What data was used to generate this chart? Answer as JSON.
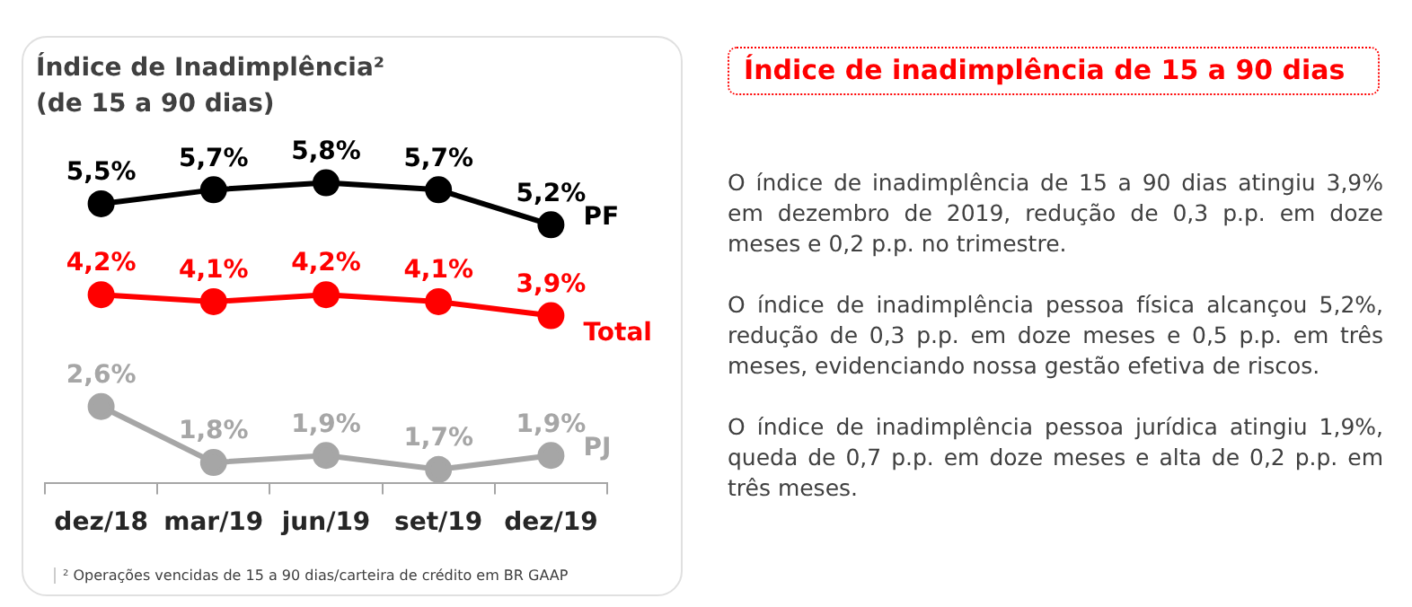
{
  "chart_data": {
    "type": "line",
    "title": "Índice de Inadimplência²",
    "subtitle": "(de 15 a 90 dias)",
    "categories": [
      "dez/18",
      "mar/19",
      "jun/19",
      "set/19",
      "dez/19"
    ],
    "series": [
      {
        "name": "PF",
        "color": "#000000",
        "values": [
          5.5,
          5.7,
          5.8,
          5.7,
          5.2
        ],
        "value_labels": [
          "5,5%",
          "5,7%",
          "5,8%",
          "5,7%",
          "5,2%"
        ]
      },
      {
        "name": "Total",
        "color": "#ff0000",
        "values": [
          4.2,
          4.1,
          4.2,
          4.1,
          3.9
        ],
        "value_labels": [
          "4,2%",
          "4,1%",
          "4,2%",
          "4,1%",
          "3,9%"
        ]
      },
      {
        "name": "PJ",
        "color": "#a6a6a6",
        "values": [
          2.6,
          1.8,
          1.9,
          1.7,
          1.9
        ],
        "value_labels": [
          "2,6%",
          "1,8%",
          "1,9%",
          "1,7%",
          "1,9%"
        ]
      }
    ],
    "marker": "circle",
    "line_style": "solid",
    "grid": false,
    "legend": false,
    "annotations": [
      "² Operações vencidas de 15 a 90 dias/carteira de crédito em BR GAAP",
      "Índice de inadimplência de 15 a 90 dias",
      "O índice de inadimplência de 15 a 90 dias atingiu 3,9% em dezembro de 2019, redução de 0,3 p.p. em doze meses e 0,2 p.p. no trimestre.",
      "O índice de inadimplência pessoa física alcançou 5,2%, redução de 0,3 p.p. em doze meses e 0,5 p.p. em três meses, evidenciando nossa gestão efetiva de riscos.",
      "O índice de inadimplência pessoa jurídica atingiu 1,9%, queda de 0,7 p.p. em doze meses e alta de 0,2 p.p. em três meses."
    ]
  }
}
